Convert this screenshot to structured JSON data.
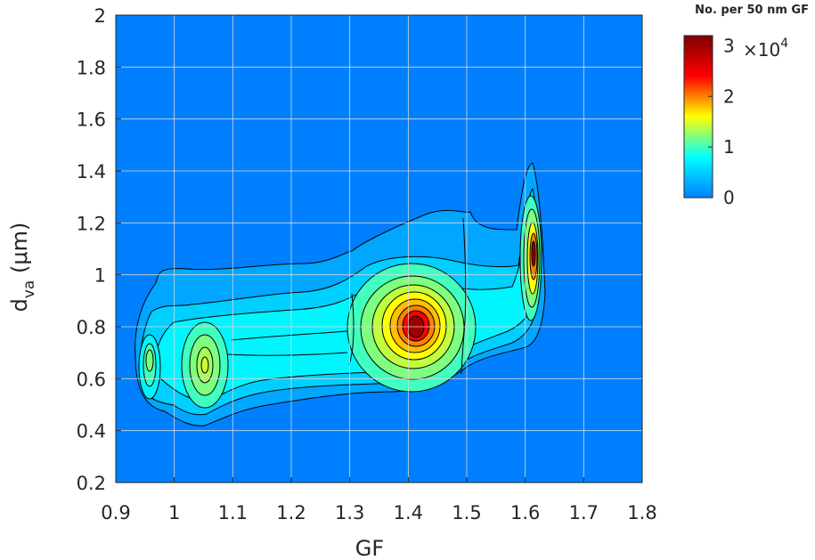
{
  "chart_data": {
    "type": "heatmap",
    "subtype": "filled-contour",
    "xlabel": "GF",
    "ylabel_main": "d",
    "ylabel_sub": "va",
    "ylabel_unit": "(μm)",
    "xlim": [
      0.9,
      1.8
    ],
    "ylim": [
      0.2,
      2.0
    ],
    "xticks": [
      "0.9",
      "1",
      "1.1",
      "1.2",
      "1.3",
      "1.4",
      "1.5",
      "1.6",
      "1.7",
      "1.8"
    ],
    "yticks": [
      "0.2",
      "0.4",
      "0.6",
      "0.8",
      "1",
      "1.2",
      "1.4",
      "1.6",
      "1.8",
      "2"
    ],
    "grid": true,
    "colormap": "jet",
    "colorbar": {
      "title": "No. per 50 nm GF",
      "ticks": [
        "0",
        "1",
        "2",
        "3"
      ],
      "multiplier_base": "×10",
      "multiplier_exp": "4",
      "range": [
        0,
        3.2
      ]
    },
    "modes": [
      {
        "gf": 1.414,
        "dva": 0.79,
        "peak": 3.2
      },
      {
        "gf": 1.605,
        "dva": 1.05,
        "peak": 2.3
      },
      {
        "gf": 1.05,
        "dva": 0.63,
        "peak": 0.9
      },
      {
        "gf": 0.958,
        "dva": 0.65,
        "peak": 0.8
      }
    ]
  }
}
